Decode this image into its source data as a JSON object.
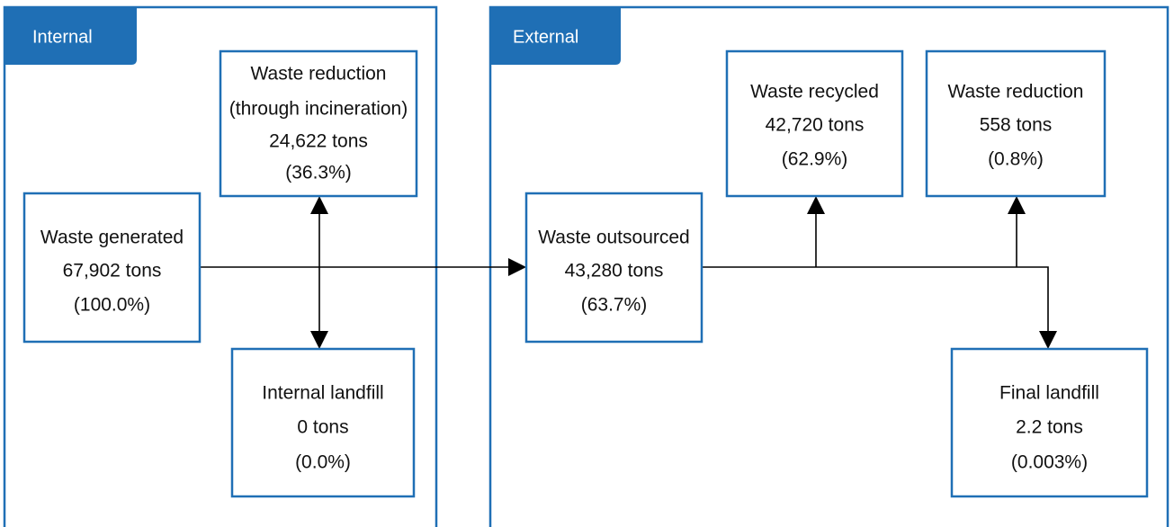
{
  "sections": [
    {
      "label": "Internal"
    },
    {
      "label": "External"
    }
  ],
  "nodes": [
    {
      "lines": [
        "Waste generated",
        "67,902 tons",
        "(100.0%)"
      ]
    },
    {
      "lines": [
        "Waste reduction",
        "(through incineration)",
        "24,622 tons",
        "(36.3%)"
      ]
    },
    {
      "lines": [
        "Internal landfill",
        "0 tons",
        "(0.0%)"
      ]
    },
    {
      "lines": [
        "Waste outsourced",
        "43,280 tons",
        "(63.7%)"
      ]
    },
    {
      "lines": [
        "Waste recycled",
        "42,720 tons",
        "(62.9%)"
      ]
    },
    {
      "lines": [
        "Waste reduction",
        "558 tons",
        "(0.8%)"
      ]
    },
    {
      "lines": [
        "Final landfill",
        "2.2 tons",
        "(0.003%)"
      ]
    }
  ]
}
